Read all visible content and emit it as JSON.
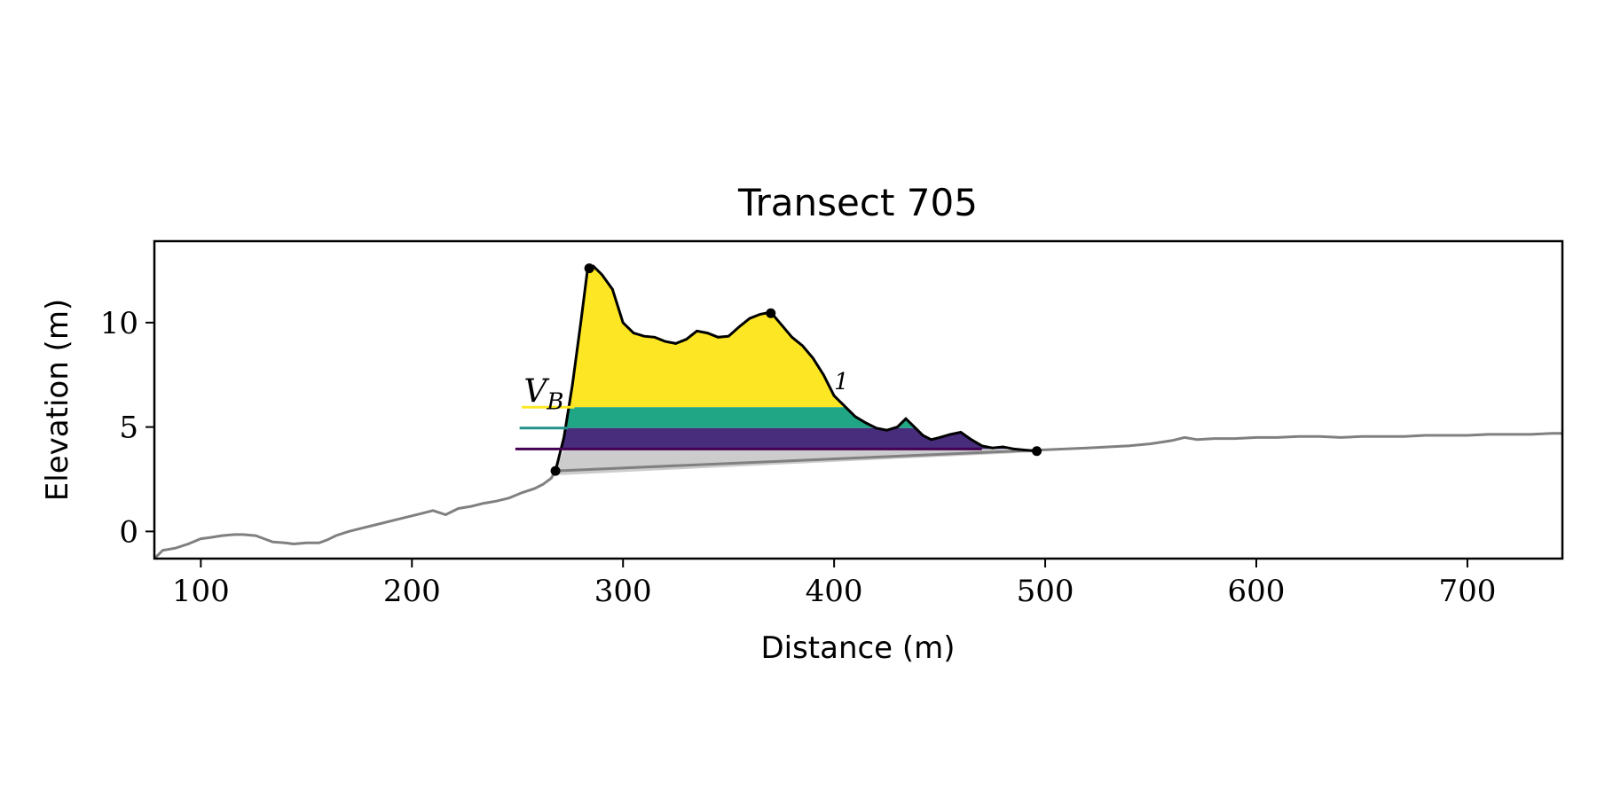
{
  "chart_data": {
    "type": "area",
    "title": "Transect 705",
    "xlabel": "Distance (m)",
    "ylabel": "Elevation (m)",
    "xlim": [
      78,
      745
    ],
    "ylim": [
      -1.3,
      13.9
    ],
    "xticks": [
      100,
      200,
      300,
      400,
      500,
      600,
      700
    ],
    "yticks": [
      0,
      5,
      10
    ],
    "grid": false,
    "legend": "none",
    "colors": {
      "profile": "#808080",
      "dune_outline": "#000000",
      "base_fill": "#cccccc",
      "band_top": "#fde725",
      "band_mid": "#21a685",
      "band_low": "#472d7b",
      "line_top": "#fde725",
      "line_mid": "#21918c",
      "line_low": "#440154"
    },
    "profile": {
      "x": [
        78,
        82,
        88,
        94,
        100,
        104,
        110,
        116,
        120,
        126,
        130,
        134,
        140,
        144,
        150,
        156,
        160,
        164,
        170,
        176,
        180,
        186,
        192,
        198,
        204,
        210,
        216,
        222,
        228,
        234,
        240,
        246,
        252,
        258,
        262,
        266,
        268,
        520,
        530,
        540,
        550,
        560,
        566,
        572,
        580,
        590,
        600,
        610,
        620,
        630,
        640,
        650,
        660,
        670,
        680,
        690,
        700,
        710,
        720,
        730,
        740,
        745
      ],
      "y": [
        -1.3,
        -0.9,
        -0.8,
        -0.6,
        -0.35,
        -0.3,
        -0.2,
        -0.15,
        -0.15,
        -0.2,
        -0.35,
        -0.5,
        -0.55,
        -0.6,
        -0.55,
        -0.55,
        -0.4,
        -0.2,
        0.0,
        0.15,
        0.25,
        0.4,
        0.55,
        0.7,
        0.85,
        1.0,
        0.8,
        1.1,
        1.2,
        1.35,
        1.45,
        1.6,
        1.85,
        2.05,
        2.25,
        2.55,
        2.9,
        4.0,
        4.05,
        4.1,
        4.2,
        4.35,
        4.5,
        4.4,
        4.45,
        4.45,
        4.5,
        4.5,
        4.55,
        4.55,
        4.5,
        4.55,
        4.55,
        4.55,
        4.6,
        4.6,
        4.6,
        4.65,
        4.65,
        4.65,
        4.7,
        4.7
      ]
    },
    "dune": {
      "x": [
        268,
        272,
        276,
        280,
        283,
        286,
        290,
        295,
        300,
        305,
        310,
        315,
        320,
        325,
        330,
        335,
        340,
        345,
        350,
        355,
        360,
        365,
        370,
        375,
        380,
        385,
        390,
        395,
        400,
        405,
        410,
        415,
        420,
        425,
        430,
        434,
        438,
        442,
        446,
        450,
        455,
        460,
        465,
        470,
        475,
        480,
        485,
        490,
        496
      ],
      "y": [
        2.9,
        4.5,
        7.0,
        10.0,
        12.4,
        12.7,
        12.3,
        11.6,
        10.0,
        9.5,
        9.35,
        9.3,
        9.1,
        9.0,
        9.2,
        9.6,
        9.5,
        9.3,
        9.35,
        9.8,
        10.2,
        10.4,
        10.5,
        9.9,
        9.3,
        8.9,
        8.3,
        7.5,
        6.5,
        6.0,
        5.5,
        5.2,
        4.95,
        4.85,
        5.0,
        5.4,
        5.0,
        4.6,
        4.4,
        4.5,
        4.65,
        4.75,
        4.4,
        4.1,
        4.0,
        4.05,
        3.95,
        3.9,
        3.85
      ]
    },
    "base_line": {
      "x": [
        270,
        496
      ],
      "y": [
        2.7,
        3.8
      ]
    },
    "markers": [
      {
        "x": 268,
        "y": 2.9
      },
      {
        "x": 284,
        "y": 12.6
      },
      {
        "x": 370,
        "y": 10.45
      },
      {
        "x": 496,
        "y": 3.85
      }
    ],
    "bands": [
      {
        "name": "top",
        "y0": 5.95,
        "y1": 13.9,
        "line_x": [
          252,
          277
        ]
      },
      {
        "name": "mid",
        "y0": 4.95,
        "y1": 5.95,
        "line_x": [
          251,
          274
        ]
      },
      {
        "name": "low",
        "y0": 3.95,
        "y1": 4.95,
        "line_x": [
          249,
          272
        ]
      }
    ],
    "annotations": [
      {
        "label": "V",
        "sub": "B",
        "x": 253,
        "y": 6.2
      },
      {
        "label": "1",
        "x": 400,
        "y": 6.8
      }
    ]
  }
}
